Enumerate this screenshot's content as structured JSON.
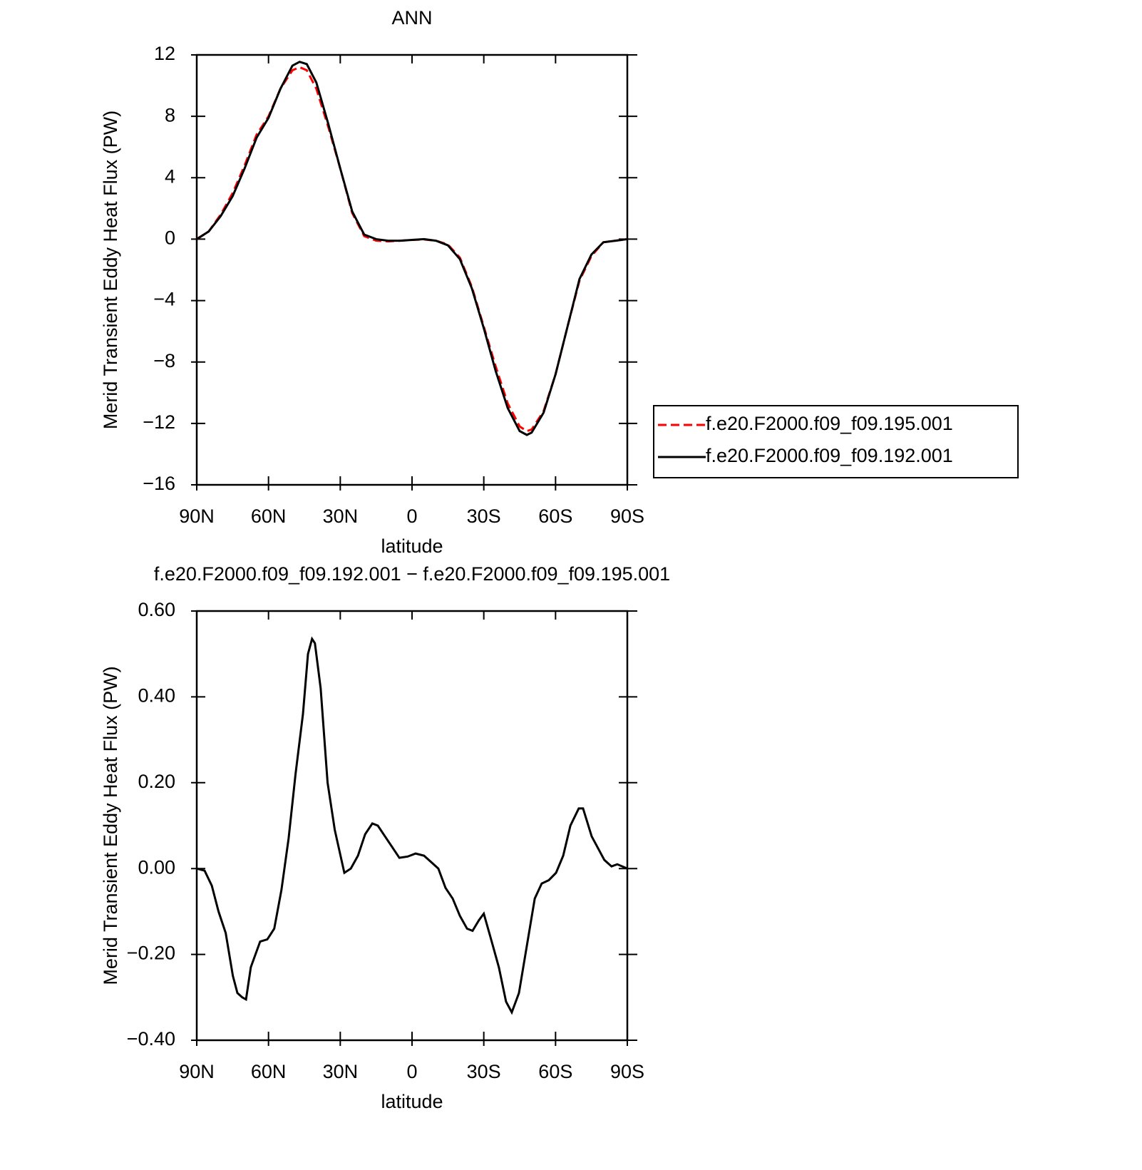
{
  "chart_data": [
    {
      "type": "line",
      "title": "ANN",
      "xlabel": "latitude",
      "ylabel": "Merid Transient Eddy Heat Flux (PW)",
      "x": [
        90,
        85,
        80,
        75,
        70,
        65,
        60,
        55,
        50,
        47,
        44,
        40,
        35,
        30,
        25,
        20,
        15,
        10,
        5,
        0,
        -5,
        -10,
        -15,
        -20,
        -25,
        -30,
        -35,
        -40,
        -45,
        -48,
        -50,
        -55,
        -60,
        -65,
        -70,
        -75,
        -80,
        -85,
        -90
      ],
      "series": [
        {
          "name": "f.e20.F2000.f09_f09.195.001",
          "color": "#ff0000",
          "linestyle": "dashed",
          "values": [
            0,
            0.5,
            1.6,
            3.0,
            4.8,
            6.8,
            8.0,
            9.8,
            11.0,
            11.2,
            11.0,
            9.8,
            7.3,
            4.6,
            1.7,
            0.2,
            -0.1,
            -0.15,
            -0.1,
            -0.05,
            -0.02,
            -0.1,
            -0.35,
            -1.2,
            -3.1,
            -5.7,
            -8.3,
            -10.7,
            -12.2,
            -12.5,
            -12.4,
            -11.2,
            -8.8,
            -5.7,
            -2.7,
            -1.1,
            -0.2,
            -0.1,
            0
          ]
        },
        {
          "name": "f.e20.F2000.f09_f09.192.001",
          "color": "#000000",
          "linestyle": "solid",
          "values": [
            0,
            0.5,
            1.5,
            2.8,
            4.6,
            6.6,
            7.9,
            9.8,
            11.3,
            11.55,
            11.4,
            10.2,
            7.5,
            4.6,
            1.8,
            0.3,
            0.0,
            -0.1,
            -0.1,
            -0.05,
            0,
            -0.1,
            -0.4,
            -1.3,
            -3.2,
            -5.8,
            -8.6,
            -11.0,
            -12.5,
            -12.75,
            -12.6,
            -11.3,
            -8.8,
            -5.7,
            -2.6,
            -1.0,
            -0.2,
            -0.1,
            0
          ]
        }
      ],
      "xlim": [
        90,
        -90
      ],
      "xticks": [
        {
          "value": 90,
          "label": "90N"
        },
        {
          "value": 60,
          "label": "60N"
        },
        {
          "value": 30,
          "label": "30N"
        },
        0,
        {
          "value": -30,
          "label": "30S"
        },
        {
          "value": -60,
          "label": "60S"
        },
        {
          "value": -90,
          "label": "90S"
        }
      ],
      "ylim": [
        -16,
        12
      ],
      "yticks": [
        {
          "value": -16,
          "label": "−16"
        },
        {
          "value": -12,
          "label": "−12"
        },
        {
          "value": -8,
          "label": "−8"
        },
        {
          "value": -4,
          "label": "−4"
        },
        0,
        4,
        8,
        12
      ],
      "legend": "right"
    },
    {
      "type": "line",
      "title": "f.e20.F2000.f09_f09.192.001 − f.e20.F2000.f09_f09.195.001",
      "xlabel": "latitude",
      "ylabel": "Merid Transient Eddy Heat Flux (PW)",
      "x": [
        90,
        86.7,
        83.7,
        80.9,
        77.9,
        74.9,
        73,
        71,
        69.4,
        67.4,
        63.5,
        60.5,
        57.6,
        54.6,
        51.6,
        48.7,
        45.6,
        43.5,
        41.8,
        40.6,
        38.2,
        35.3,
        32.3,
        28.3,
        25.6,
        22.6,
        19.6,
        16.6,
        14.3,
        11.3,
        8.3,
        5.3,
        1.8,
        -1.5,
        -5,
        -8,
        -11,
        -14,
        -17,
        -20,
        -23,
        -25.3,
        -28,
        -30,
        -32.8,
        -36.3,
        -39.3,
        -41.7,
        -44.7,
        -48.3,
        -51.3,
        -54.2,
        -57.2,
        -60.2,
        -63.2,
        -66.2,
        -69.7,
        -71.5,
        -75.1,
        -77.5,
        -80.4,
        -83.4,
        -85.8,
        -90
      ],
      "series": [
        {
          "color": "#000000",
          "linestyle": "solid",
          "values": [
            0,
            -0.005,
            -0.04,
            -0.1,
            -0.15,
            -0.25,
            -0.29,
            -0.3,
            -0.305,
            -0.23,
            -0.17,
            -0.165,
            -0.14,
            -0.05,
            0.07,
            0.22,
            0.36,
            0.5,
            0.535,
            0.525,
            0.42,
            0.2,
            0.09,
            -0.01,
            0.0,
            0.03,
            0.08,
            0.105,
            0.1,
            0.075,
            0.05,
            0.025,
            0.028,
            0.035,
            0.03,
            0.015,
            0.0,
            -0.045,
            -0.07,
            -0.11,
            -0.14,
            -0.145,
            -0.12,
            -0.105,
            -0.16,
            -0.23,
            -0.31,
            -0.335,
            -0.29,
            -0.17,
            -0.07,
            -0.035,
            -0.027,
            -0.01,
            0.03,
            0.1,
            0.14,
            0.14,
            0.075,
            0.05,
            0.02,
            0.005,
            0.01,
            0
          ]
        }
      ],
      "xlim": [
        90,
        -90
      ],
      "xticks": [
        {
          "value": 90,
          "label": "90N"
        },
        {
          "value": 60,
          "label": "60N"
        },
        {
          "value": 30,
          "label": "30N"
        },
        0,
        {
          "value": -30,
          "label": "30S"
        },
        {
          "value": -60,
          "label": "60S"
        },
        {
          "value": -90,
          "label": "90S"
        }
      ],
      "ylim": [
        -0.4,
        0.6
      ],
      "yticks": [
        {
          "value": -0.4,
          "label": "−0.40"
        },
        {
          "value": -0.2,
          "label": "−0.20"
        },
        {
          "value": 0,
          "label": "0.00"
        },
        {
          "value": 0.2,
          "label": "0.20"
        },
        {
          "value": 0.4,
          "label": "0.40"
        },
        {
          "value": 0.6,
          "label": "0.60"
        }
      ]
    }
  ]
}
